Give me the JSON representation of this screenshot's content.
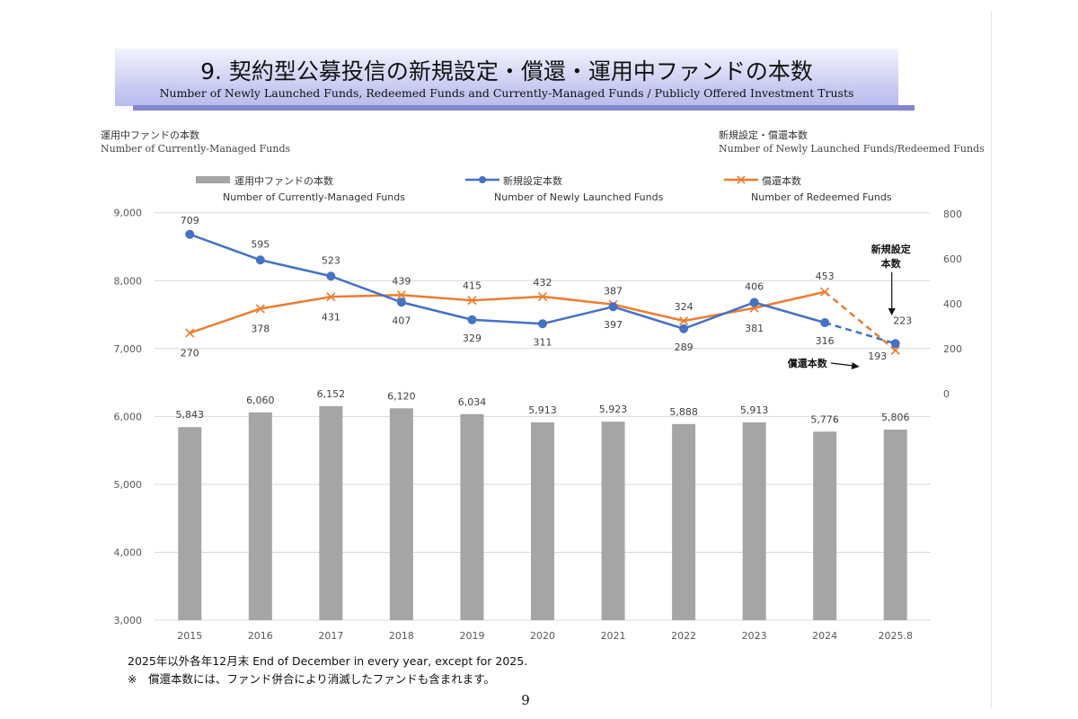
{
  "header": {
    "title_jp": "9. 契約型公募投信の新規設定・償還・運用中ファンドの本数",
    "title_en": "Number of Newly Launched Funds, Redeemed Funds and Currently-Managed Funds / Publicly Offered Investment Trusts"
  },
  "left_axis_caption": {
    "jp": "運用中ファンドの本数",
    "en": "Number of Currently-Managed Funds"
  },
  "right_axis_caption": {
    "jp": "新規設定・償還本数",
    "en": "Number of Newly Launched Funds/Redeemed Funds"
  },
  "legend": [
    {
      "jp": "運用中ファンドの本数",
      "en": "Number of Currently-Managed Funds"
    },
    {
      "jp": "新規設定本数",
      "en": "Number of Newly Launched Funds"
    },
    {
      "jp": "償還本数",
      "en": "Number of Redeemed Funds"
    }
  ],
  "colors": {
    "bar": "#a5a5a5",
    "new": "#4472c4",
    "redeemed": "#ed7d31",
    "grid": "#d9d9d9",
    "axis_text": "#595959"
  },
  "chart_data": {
    "type": "bar+line",
    "categories": [
      "2015",
      "2016",
      "2017",
      "2018",
      "2019",
      "2020",
      "2021",
      "2022",
      "2023",
      "2024",
      "2025.8"
    ],
    "series": [
      {
        "name": "運用中ファンドの本数",
        "axis": "left",
        "type": "bar",
        "values": [
          5843,
          6060,
          6152,
          6120,
          6034,
          5913,
          5923,
          5888,
          5913,
          5776,
          5806
        ]
      },
      {
        "name": "新規設定本数",
        "axis": "right",
        "type": "line",
        "values": [
          709,
          595,
          523,
          407,
          329,
          311,
          387,
          289,
          406,
          316,
          223
        ]
      },
      {
        "name": "償還本数",
        "axis": "right",
        "type": "line",
        "values": [
          270,
          378,
          431,
          439,
          415,
          432,
          397,
          324,
          381,
          453,
          193
        ]
      }
    ],
    "left_axis": {
      "ticks": [
        3000,
        4000,
        5000,
        6000,
        7000,
        8000,
        9000
      ],
      "labels": [
        "3,000",
        "4,000",
        "5,000",
        "6,000",
        "7,000",
        "8,000",
        "9,000"
      ],
      "ylim": [
        3000,
        9000
      ]
    },
    "right_axis": {
      "ticks": [
        0,
        200,
        400,
        600,
        800
      ],
      "labels": [
        "0",
        "200",
        "400",
        "600",
        "800"
      ],
      "ylim": [
        0,
        800
      ]
    },
    "bar_labels": [
      "5,843",
      "6,060",
      "6,152",
      "6,120",
      "6,034",
      "5,913",
      "5,923",
      "5,888",
      "5,913",
      "5,776",
      "5,806"
    ],
    "annotations": {
      "new_callout_line1": "新規設定",
      "new_callout_line2": "本数",
      "redeemed_callout": "償還本数"
    }
  },
  "footnotes": {
    "line1": "2025年以外各年12月末 End of December in every year, except for 2025.",
    "line2": "※　償還本数には、ファンド併合により消滅したファンドも含まれます。"
  },
  "page_number": "9"
}
